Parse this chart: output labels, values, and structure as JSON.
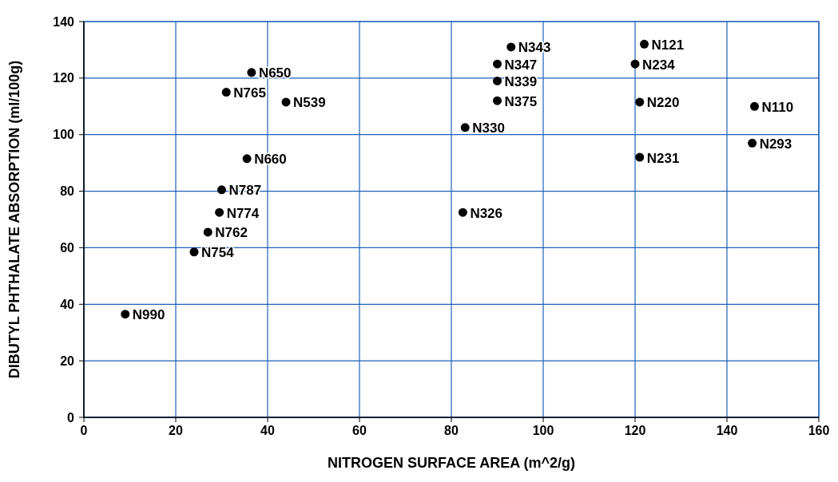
{
  "chart_data": {
    "type": "scatter",
    "xlabel": "NITROGEN SURFACE AREA (m^2/g)",
    "ylabel": "DIBUTYL PHTHALATE ABSORPTION (ml/100g)",
    "x": [
      9,
      24,
      27,
      29.5,
      30,
      35.5,
      31,
      36.5,
      44,
      83,
      82.5,
      93,
      90,
      90,
      90,
      122,
      120,
      121,
      121,
      146,
      145.5
    ],
    "series": [
      {
        "color": "#000000",
        "values": [
          36.5,
          58.5,
          65.5,
          72.5,
          80.5,
          91.5,
          115,
          122,
          111.5,
          102.5,
          72.5,
          131,
          125,
          119,
          112,
          132,
          125,
          111.5,
          92,
          110,
          97
        ]
      }
    ],
    "annotations": [
      {
        "text": "N990",
        "x": 9,
        "y": 36.5
      },
      {
        "text": "N754",
        "x": 24,
        "y": 58.5
      },
      {
        "text": "N762",
        "x": 27,
        "y": 65.5
      },
      {
        "text": "N774",
        "x": 29.5,
        "y": 72.5
      },
      {
        "text": "N787",
        "x": 30,
        "y": 80.5
      },
      {
        "text": "N660",
        "x": 35.5,
        "y": 91.5
      },
      {
        "text": "N765",
        "x": 31,
        "y": 115
      },
      {
        "text": "N650",
        "x": 36.5,
        "y": 122
      },
      {
        "text": "N539",
        "x": 44,
        "y": 111.5
      },
      {
        "text": "N330",
        "x": 83,
        "y": 102.5
      },
      {
        "text": "N326",
        "x": 82.5,
        "y": 72.5
      },
      {
        "text": "N343",
        "x": 93,
        "y": 131
      },
      {
        "text": "N347",
        "x": 90,
        "y": 125
      },
      {
        "text": "N339",
        "x": 90,
        "y": 119
      },
      {
        "text": "N375",
        "x": 90,
        "y": 112
      },
      {
        "text": "N121",
        "x": 122,
        "y": 132
      },
      {
        "text": "N234",
        "x": 120,
        "y": 125
      },
      {
        "text": "N220",
        "x": 121,
        "y": 111.5
      },
      {
        "text": "N231",
        "x": 121,
        "y": 92
      },
      {
        "text": "N110",
        "x": 146,
        "y": 110
      },
      {
        "text": "N293",
        "x": 145.5,
        "y": 97
      }
    ],
    "xlim": [
      0,
      160
    ],
    "xticks": [
      0,
      20,
      40,
      60,
      80,
      100,
      120,
      140,
      160
    ],
    "ylim": [
      0,
      140
    ],
    "yticks": [
      0,
      20,
      40,
      60,
      80,
      100,
      120,
      140
    ],
    "grid": true,
    "marker": "circle"
  }
}
